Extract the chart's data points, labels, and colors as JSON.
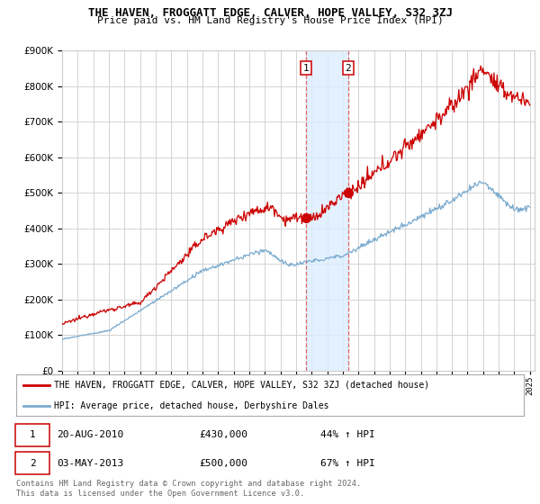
{
  "title": "THE HAVEN, FROGGATT EDGE, CALVER, HOPE VALLEY, S32 3ZJ",
  "subtitle": "Price paid vs. HM Land Registry's House Price Index (HPI)",
  "legend_line1": "THE HAVEN, FROGGATT EDGE, CALVER, HOPE VALLEY, S32 3ZJ (detached house)",
  "legend_line2": "HPI: Average price, detached house, Derbyshire Dales",
  "transaction1_date": "20-AUG-2010",
  "transaction1_price": "£430,000",
  "transaction1_hpi": "44% ↑ HPI",
  "transaction2_date": "03-MAY-2013",
  "transaction2_price": "£500,000",
  "transaction2_hpi": "67% ↑ HPI",
  "footer": "Contains HM Land Registry data © Crown copyright and database right 2024.\nThis data is licensed under the Open Government Licence v3.0.",
  "red_color": "#cc0000",
  "blue_color": "#7aabcf",
  "background_color": "#ffffff",
  "grid_color": "#cccccc",
  "highlight_color": "#ddeeff",
  "vline_color": "#dd6666",
  "ylim_min": 0,
  "ylim_max": 900000,
  "start_year": 1995,
  "end_year": 2025,
  "transaction1_year": 2010.63,
  "transaction2_year": 2013.34,
  "transaction1_value": 430000,
  "transaction2_value": 500000
}
